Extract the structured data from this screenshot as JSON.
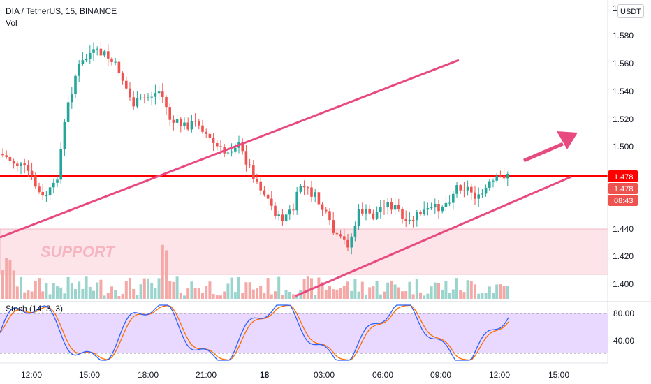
{
  "header": {
    "symbol_line": "DIA / TetherUS, 15, BINANCE",
    "volume_label": "Vol",
    "stoch_label": "Stoch (14, 3, 3)",
    "currency_button": "USDT",
    "top_clipped_tick": "1"
  },
  "price_axis": {
    "ticks": [
      "1.580",
      "1.560",
      "1.540",
      "1.520",
      "1.500",
      "1.440",
      "1.420",
      "1.400"
    ],
    "tags": {
      "resistance": "1.478",
      "last_price": "1.478",
      "countdown": "08:43"
    }
  },
  "stoch_axis": {
    "ticks": [
      "80.00",
      "40.00"
    ]
  },
  "time_axis": {
    "ticks": [
      "12:00",
      "15:00",
      "18:00",
      "21:00",
      "18",
      "03:00",
      "06:00",
      "09:00",
      "12:00",
      "15:00"
    ]
  },
  "annotations": {
    "support_label": "SUPPORT"
  },
  "colors": {
    "up": "#26a69a",
    "down": "#ef5350",
    "resistance_line": "#ff0000",
    "trend_line": "#e84a7f",
    "support_zone": "#fde4e8",
    "stoch_band": "#e9d8ff",
    "stoch_k": "#2962ff",
    "stoch_d": "#ff6d00"
  },
  "chart_data": {
    "type": "candlestick",
    "symbol": "DIA / TetherUS",
    "interval": "15",
    "exchange": "BINANCE",
    "last_price": 1.478,
    "resistance_level": 1.478,
    "support_zone": [
      1.408,
      1.44
    ],
    "stochastic": {
      "k": 80,
      "d": 78,
      "upper_band": 80,
      "lower_band": 20
    },
    "ylim": [
      1.395,
      1.6
    ]
  }
}
